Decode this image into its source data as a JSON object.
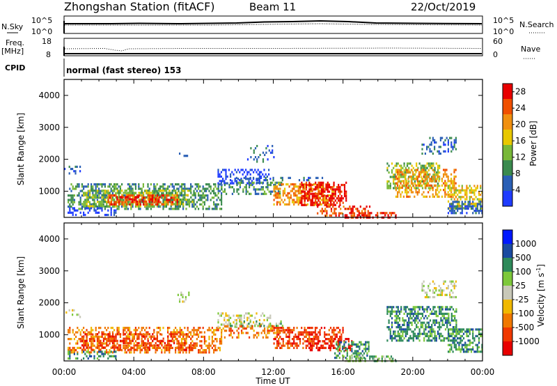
{
  "header": {
    "station": "Zhongshan Station (fitACF)",
    "beam": "Beam 11",
    "date": "22/Oct/2019"
  },
  "strip1": {
    "left_label": "N.Sky",
    "right_label": "N.Search",
    "left_ticks": [
      "10^5",
      "10^0"
    ],
    "right_ticks": [
      "10^5",
      "10^0"
    ]
  },
  "strip2": {
    "left_label_line1": "Freq.",
    "left_label_line2": "[MHz]",
    "right_label": "Nave",
    "left_ticks": [
      "18",
      "8"
    ],
    "right_ticks": [
      "60",
      "0"
    ]
  },
  "cpid": {
    "label": "CPID",
    "text": "normal (fast stereo) 153"
  },
  "colors": {
    "power": [
      "#1f3cff",
      "#2a5fb5",
      "#3a8a4e",
      "#78b838",
      "#e8c800",
      "#f09010",
      "#f05000",
      "#e80000"
    ],
    "velocity": [
      "#0018ff",
      "#1a4aa0",
      "#2e8a5a",
      "#7dc83a",
      "#c8c8b8",
      "#f0b800",
      "#f07800",
      "#f03800",
      "#e80000"
    ]
  },
  "chart_data": [
    {
      "type": "heatmap",
      "name": "power-panel",
      "ylabel": "Slant Range [km]",
      "xlabel": "Time UT",
      "x_ticks": [
        "00:00",
        "04:00",
        "08:00",
        "12:00",
        "16:00",
        "20:00",
        "00:00"
      ],
      "x_range_hours": [
        0,
        24
      ],
      "y_ticks": [
        1000,
        2000,
        3000,
        4000
      ],
      "ylim": [
        180,
        4500
      ],
      "colorbar": {
        "label": "Power [dB]",
        "ticks": [
          4,
          8,
          12,
          16,
          20,
          24,
          28
        ],
        "range": [
          0,
          30
        ]
      },
      "regions": [
        {
          "t0": 0.0,
          "t1": 0.9,
          "r0": 1550,
          "r1": 1800,
          "level": 1,
          "density": 0.25
        },
        {
          "t0": 0.2,
          "t1": 9.0,
          "r0": 450,
          "r1": 1250,
          "level": 2,
          "density": 0.45
        },
        {
          "t0": 1.0,
          "t1": 7.5,
          "r0": 500,
          "r1": 1050,
          "level": 3,
          "density": 0.55
        },
        {
          "t0": 2.5,
          "t1": 6.5,
          "r0": 620,
          "r1": 900,
          "level": 6,
          "density": 0.55
        },
        {
          "t0": 3.0,
          "t1": 5.5,
          "r0": 700,
          "r1": 850,
          "level": 7,
          "density": 0.35
        },
        {
          "t0": 0.2,
          "t1": 3.0,
          "r0": 280,
          "r1": 500,
          "level": 0,
          "density": 0.35
        },
        {
          "t0": 6.5,
          "t1": 7.2,
          "r0": 2050,
          "r1": 2350,
          "level": 1,
          "density": 0.2
        },
        {
          "t0": 8.8,
          "t1": 11.8,
          "r0": 1250,
          "r1": 1700,
          "level": 0,
          "density": 0.35
        },
        {
          "t0": 9.5,
          "t1": 15.0,
          "r0": 1350,
          "r1": 1450,
          "level": 1,
          "density": 0.3
        },
        {
          "t0": 9.0,
          "t1": 12.5,
          "r0": 900,
          "r1": 1300,
          "level": 2,
          "density": 0.35
        },
        {
          "t0": 10.5,
          "t1": 12.0,
          "r0": 1950,
          "r1": 2450,
          "level": 1,
          "density": 0.15
        },
        {
          "t0": 12.0,
          "t1": 15.5,
          "r0": 600,
          "r1": 1250,
          "level": 5,
          "density": 0.55
        },
        {
          "t0": 13.5,
          "t1": 16.2,
          "r0": 550,
          "r1": 1300,
          "level": 7,
          "density": 0.55
        },
        {
          "t0": 14.5,
          "t1": 17.5,
          "r0": 250,
          "r1": 550,
          "level": 6,
          "density": 0.45
        },
        {
          "t0": 16.0,
          "t1": 19.0,
          "r0": 200,
          "r1": 350,
          "level": 7,
          "density": 0.55
        },
        {
          "t0": 18.5,
          "t1": 21.5,
          "r0": 1100,
          "r1": 1900,
          "level": 3,
          "density": 0.5
        },
        {
          "t0": 19.0,
          "t1": 22.5,
          "r0": 800,
          "r1": 1700,
          "level": 5,
          "density": 0.45
        },
        {
          "t0": 20.5,
          "t1": 22.5,
          "r0": 2200,
          "r1": 2700,
          "level": 1,
          "density": 0.35
        },
        {
          "t0": 22.0,
          "t1": 24.0,
          "r0": 500,
          "r1": 1200,
          "level": 4,
          "density": 0.5
        },
        {
          "t0": 22.0,
          "t1": 24.0,
          "r0": 350,
          "r1": 700,
          "level": 1,
          "density": 0.4
        }
      ]
    },
    {
      "type": "heatmap",
      "name": "velocity-panel",
      "ylabel": "Slant Range [km]",
      "xlabel": "Time UT",
      "x_ticks": [
        "00:00",
        "04:00",
        "08:00",
        "12:00",
        "16:00",
        "20:00",
        "00:00"
      ],
      "x_range_hours": [
        0,
        24
      ],
      "y_ticks": [
        1000,
        2000,
        3000,
        4000
      ],
      "ylim": [
        180,
        4500
      ],
      "colorbar": {
        "label": "Velocity [m s^-1]",
        "ticks": [
          "1000",
          "500",
          "100",
          "25",
          "-25",
          "-100",
          "-500",
          "-1000"
        ]
      },
      "regions": [
        {
          "t0": 0.0,
          "t1": 0.9,
          "r0": 1550,
          "r1": 1800,
          "level": 4,
          "density": 0.25
        },
        {
          "t0": 0.2,
          "t1": 9.0,
          "r0": 450,
          "r1": 1250,
          "level": 6,
          "density": 0.45
        },
        {
          "t0": 1.0,
          "t1": 7.5,
          "r0": 500,
          "r1": 1050,
          "level": 7,
          "density": 0.45
        },
        {
          "t0": 0.2,
          "t1": 3.0,
          "r0": 280,
          "r1": 500,
          "level": 2,
          "density": 0.35
        },
        {
          "t0": 6.5,
          "t1": 7.2,
          "r0": 2050,
          "r1": 2350,
          "level": 4,
          "density": 0.2
        },
        {
          "t0": 8.8,
          "t1": 11.8,
          "r0": 1250,
          "r1": 1700,
          "level": 4,
          "density": 0.35
        },
        {
          "t0": 9.5,
          "t1": 12.5,
          "r0": 1300,
          "r1": 1450,
          "level": 3,
          "density": 0.35
        },
        {
          "t0": 9.0,
          "t1": 12.5,
          "r0": 900,
          "r1": 1300,
          "level": 6,
          "density": 0.35
        },
        {
          "t0": 12.0,
          "t1": 16.0,
          "r0": 600,
          "r1": 1250,
          "level": 7,
          "density": 0.55
        },
        {
          "t0": 14.0,
          "t1": 16.5,
          "r0": 550,
          "r1": 900,
          "level": 8,
          "density": 0.35
        },
        {
          "t0": 15.5,
          "t1": 17.5,
          "r0": 250,
          "r1": 800,
          "level": 2,
          "density": 0.45
        },
        {
          "t0": 16.0,
          "t1": 19.0,
          "r0": 200,
          "r1": 350,
          "level": 3,
          "density": 0.45
        },
        {
          "t0": 18.5,
          "t1": 22.5,
          "r0": 800,
          "r1": 1900,
          "level": 2,
          "density": 0.55
        },
        {
          "t0": 20.5,
          "t1": 22.5,
          "r0": 2200,
          "r1": 2700,
          "level": 4,
          "density": 0.35
        },
        {
          "t0": 22.0,
          "t1": 24.0,
          "r0": 500,
          "r1": 1200,
          "level": 2,
          "density": 0.5
        }
      ]
    }
  ]
}
